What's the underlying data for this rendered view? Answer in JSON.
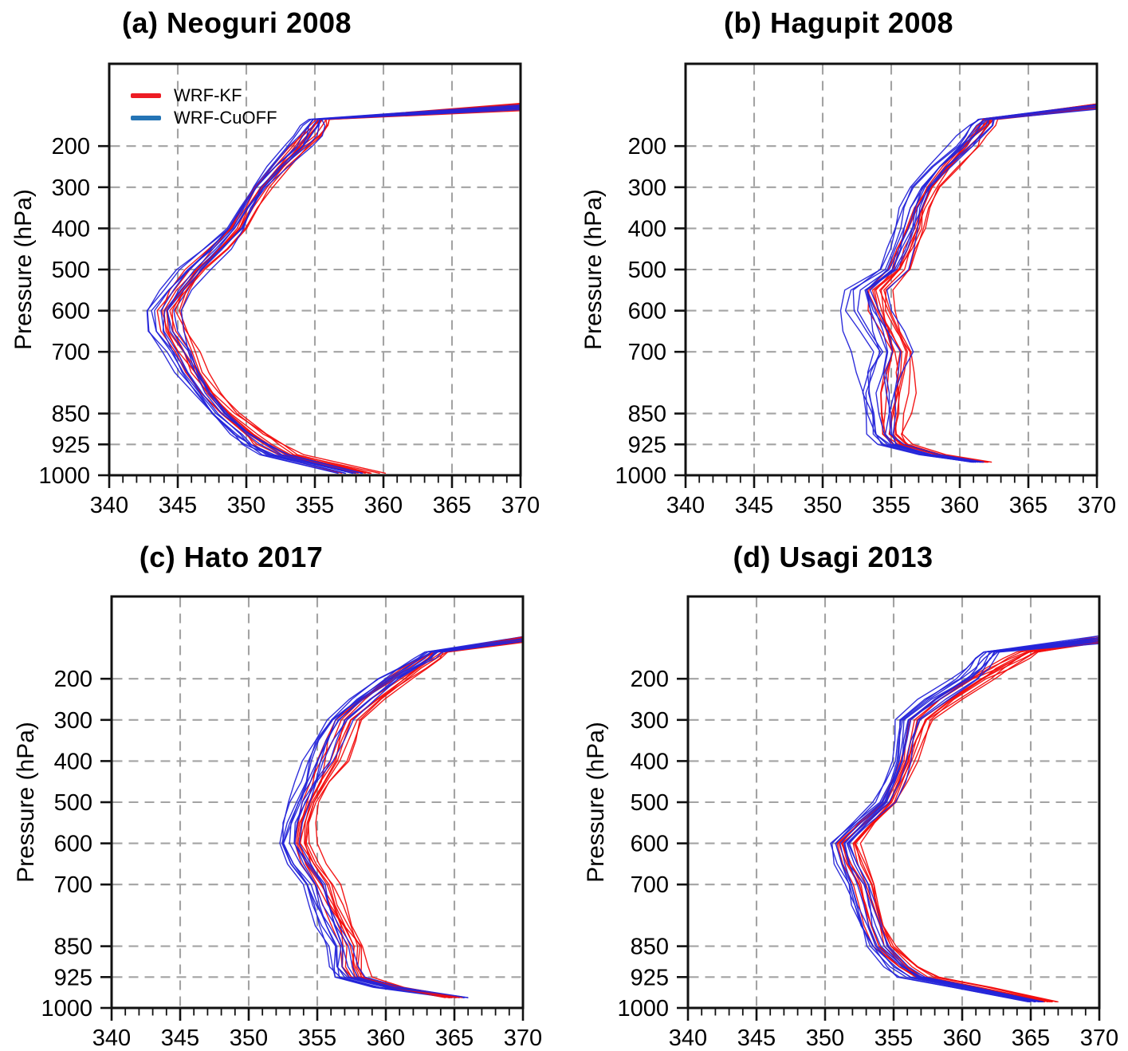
{
  "figure": {
    "background": "#ffffff",
    "colors": {
      "frame": "#111111",
      "grid": "#a3a3a3",
      "line_red": "#f20d0d",
      "line_blue": "#2424d9"
    },
    "legend": {
      "items": [
        {
          "label": "WRF-KF",
          "color": "#ed1c24"
        },
        {
          "label": "WRF-CuOFF",
          "color": "#2474b5"
        }
      ]
    },
    "x_axis": {
      "min": 340,
      "max": 370,
      "major_ticks": [
        340,
        345,
        350,
        355,
        360,
        365,
        370
      ],
      "minor_tick_step": 1,
      "grid_values": [
        345,
        350,
        355,
        360,
        365
      ]
    },
    "y_axis": {
      "label": "Pressure (hPa)",
      "min": 0,
      "max": 1000,
      "tick_values": [
        200,
        300,
        400,
        500,
        600,
        700,
        850,
        925,
        1000
      ],
      "grid_values": [
        200,
        300,
        400,
        500,
        600,
        700,
        850,
        925
      ]
    }
  },
  "chart_data": [
    {
      "panel": "a",
      "type": "line",
      "title": "(a) Neoguri 2008",
      "xlim": [
        340,
        370
      ],
      "ylim_pressure_hPa": [
        1000,
        0
      ],
      "seed": 11,
      "levels_hPa": [
        995,
        950,
        925,
        900,
        850,
        800,
        750,
        700,
        650,
        600,
        550,
        500,
        450,
        400,
        350,
        300,
        250,
        200,
        175,
        150,
        135,
        100
      ],
      "top_convergence": {
        "theta": 370,
        "pressure": 105,
        "pressure_jitter": 7
      },
      "series": [
        {
          "name": "WRF-KF",
          "color": "#f20d0d",
          "n_members": 10,
          "mean": [
            358.4,
            352.9,
            351.6,
            350.6,
            348.8,
            347.5,
            346.4,
            345.6,
            344.7,
            344.4,
            345.3,
            346.5,
            348.0,
            349.4,
            350.2,
            351.1,
            352.5,
            354.0,
            354.7,
            355.3,
            355.6,
            370
          ],
          "spread": [
            1.5,
            1.1,
            1.1,
            1.0,
            0.9,
            0.9,
            0.9,
            0.9,
            1.0,
            1.0,
            0.9,
            0.9,
            0.8,
            0.7,
            0.7,
            0.7,
            0.7,
            0.8,
            0.8,
            0.7,
            0.5,
            0
          ]
        },
        {
          "name": "WRF-CuOFF",
          "color": "#2424d9",
          "n_members": 10,
          "mean": [
            357.4,
            352.0,
            350.8,
            349.8,
            348.1,
            346.9,
            345.8,
            345.0,
            344.0,
            343.8,
            344.9,
            346.2,
            347.8,
            349.2,
            350.0,
            350.9,
            352.2,
            353.7,
            354.4,
            354.9,
            355.1,
            370
          ],
          "spread": [
            1.3,
            1.1,
            1.1,
            1.0,
            1.0,
            1.0,
            1.0,
            1.0,
            1.2,
            1.2,
            1.1,
            1.0,
            0.9,
            0.8,
            0.8,
            0.8,
            0.8,
            0.9,
            0.9,
            0.8,
            0.5,
            0
          ]
        }
      ]
    },
    {
      "panel": "b",
      "type": "line",
      "title": "(b) Hagupit 2008",
      "xlim": [
        340,
        370
      ],
      "ylim_pressure_hPa": [
        1000,
        0
      ],
      "seed": 23,
      "levels_hPa": [
        968,
        950,
        925,
        900,
        850,
        800,
        750,
        700,
        650,
        600,
        550,
        500,
        450,
        400,
        350,
        300,
        250,
        200,
        175,
        150,
        135,
        100
      ],
      "top_convergence": {
        "theta": 370,
        "pressure": 104,
        "pressure_jitter": 6
      },
      "series": [
        {
          "name": "WRF-KF",
          "color": "#f20d0d",
          "n_members": 10,
          "mean": [
            361.9,
            358.4,
            355.8,
            355.1,
            355.3,
            355.4,
            355.5,
            355.7,
            355.0,
            354.3,
            354.0,
            355.6,
            356.2,
            356.9,
            357.3,
            358.0,
            359.2,
            360.6,
            361.2,
            361.9,
            362.2,
            370
          ],
          "spread": [
            0.4,
            0.7,
            0.8,
            0.9,
            1.0,
            1.1,
            1.1,
            1.1,
            1.1,
            1.1,
            1.0,
            0.8,
            0.8,
            0.8,
            0.8,
            0.8,
            0.8,
            0.8,
            0.8,
            0.8,
            0.6,
            0
          ]
        },
        {
          "name": "WRF-CuOFF",
          "color": "#2424d9",
          "n_members": 10,
          "mean": [
            361.3,
            357.7,
            355.0,
            354.3,
            354.1,
            354.0,
            354.2,
            354.5,
            353.7,
            353.0,
            352.9,
            355.0,
            355.6,
            356.1,
            356.6,
            357.4,
            358.6,
            360.2,
            360.9,
            361.5,
            361.8,
            370
          ],
          "spread": [
            0.5,
            0.8,
            1.0,
            1.1,
            1.3,
            1.5,
            1.6,
            1.7,
            1.7,
            1.6,
            1.4,
            1.0,
            0.9,
            0.9,
            0.9,
            0.9,
            0.9,
            0.9,
            0.9,
            0.9,
            0.7,
            0
          ]
        }
      ]
    },
    {
      "panel": "c",
      "type": "line",
      "title": "(c) Hato 2017",
      "xlim": [
        340,
        370
      ],
      "ylim_pressure_hPa": [
        1000,
        0
      ],
      "seed": 5,
      "levels_hPa": [
        975,
        950,
        925,
        900,
        850,
        800,
        750,
        700,
        650,
        600,
        550,
        500,
        450,
        400,
        350,
        300,
        250,
        200,
        175,
        150,
        135,
        100
      ],
      "top_convergence": {
        "theta": 370,
        "pressure": 104,
        "pressure_jitter": 6
      },
      "series": [
        {
          "name": "WRF-KF",
          "color": "#f20d0d",
          "n_members": 10,
          "mean": [
            364.9,
            360.6,
            358.0,
            357.7,
            357.7,
            357.0,
            356.3,
            355.7,
            354.6,
            353.9,
            354.1,
            354.6,
            355.4,
            356.3,
            356.8,
            357.3,
            359.0,
            361.0,
            362.1,
            363.3,
            363.9,
            370
          ],
          "spread": [
            0.7,
            0.9,
            1.0,
            1.0,
            1.0,
            0.9,
            0.9,
            0.9,
            0.8,
            0.8,
            0.7,
            0.7,
            0.8,
            1.1,
            1.0,
            0.9,
            0.9,
            0.9,
            0.9,
            0.8,
            0.6,
            0
          ]
        },
        {
          "name": "WRF-CuOFF",
          "color": "#2424d9",
          "n_members": 10,
          "mean": [
            365.4,
            360.1,
            357.2,
            356.8,
            356.8,
            356.1,
            355.3,
            354.6,
            353.5,
            352.9,
            353.2,
            353.7,
            354.4,
            355.1,
            355.7,
            356.5,
            358.3,
            360.4,
            361.6,
            362.8,
            363.4,
            370
          ],
          "spread": [
            0.8,
            1.0,
            1.1,
            1.1,
            1.0,
            1.0,
            0.9,
            0.9,
            0.9,
            0.8,
            0.8,
            0.8,
            0.8,
            1.0,
            1.0,
            0.9,
            0.9,
            0.9,
            0.9,
            0.8,
            0.6,
            0
          ]
        }
      ]
    },
    {
      "panel": "d",
      "type": "line",
      "title": "(d) Usagi 2013",
      "xlim": [
        340,
        370
      ],
      "ylim_pressure_hPa": [
        1000,
        0
      ],
      "seed": 17,
      "levels_hPa": [
        985,
        950,
        925,
        900,
        850,
        800,
        750,
        700,
        650,
        600,
        550,
        500,
        450,
        400,
        350,
        300,
        250,
        200,
        175,
        150,
        135,
        100
      ],
      "top_convergence": {
        "theta": 370,
        "pressure": 105,
        "pressure_jitter": 8
      },
      "series": [
        {
          "name": "WRF-KF",
          "color": "#f20d0d",
          "n_members": 10,
          "mean": [
            366.3,
            361.2,
            357.2,
            355.9,
            354.4,
            353.8,
            353.3,
            352.9,
            352.2,
            351.7,
            353.1,
            354.7,
            355.4,
            356.1,
            356.6,
            357.1,
            359.0,
            361.4,
            362.8,
            364.1,
            364.9,
            370
          ],
          "spread": [
            0.6,
            0.9,
            1.0,
            0.9,
            0.9,
            0.8,
            0.8,
            0.8,
            0.8,
            0.8,
            0.7,
            0.6,
            0.6,
            0.6,
            0.7,
            0.8,
            0.9,
            1.0,
            1.0,
            0.9,
            0.7,
            0
          ]
        },
        {
          "name": "WRF-CuOFF",
          "color": "#2424d9",
          "n_members": 10,
          "mean": [
            365.4,
            360.3,
            356.3,
            355.1,
            353.8,
            353.2,
            352.7,
            352.3,
            351.5,
            351.1,
            352.7,
            354.3,
            355.0,
            355.5,
            355.7,
            356.0,
            357.9,
            360.2,
            361.1,
            361.7,
            362.1,
            370
          ],
          "spread": [
            0.7,
            1.0,
            1.1,
            1.0,
            0.9,
            0.9,
            0.9,
            0.9,
            0.9,
            0.9,
            0.8,
            0.7,
            0.6,
            0.6,
            0.7,
            0.8,
            0.9,
            0.9,
            0.9,
            0.8,
            0.6,
            0
          ]
        }
      ]
    }
  ]
}
